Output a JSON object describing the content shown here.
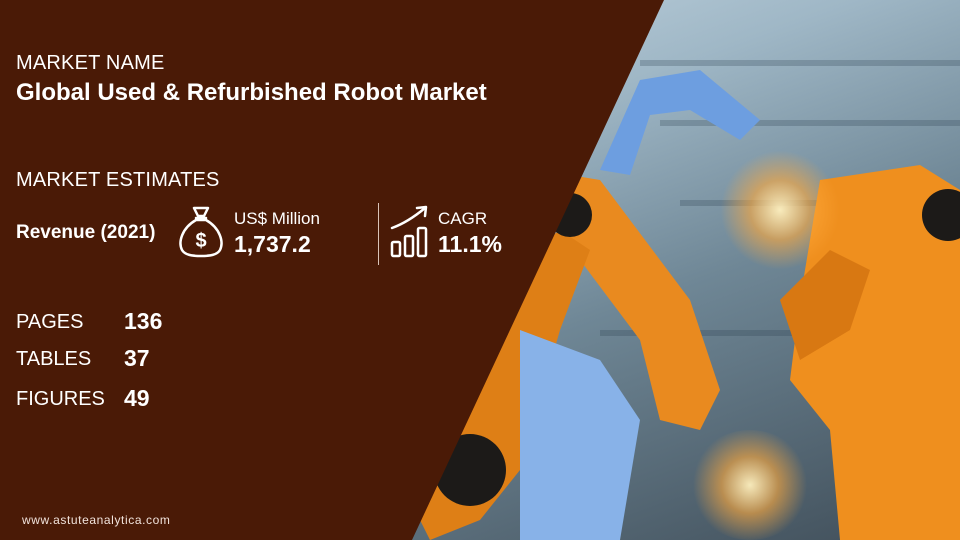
{
  "market": {
    "name_label": "MARKET NAME",
    "name": "Global Used & Refurbished Robot Market"
  },
  "estimates": {
    "label": "MARKET ESTIMATES",
    "revenue_label": "Revenue (2021)",
    "revenue_unit": "US$ Million",
    "revenue_value": "1,737.2",
    "cagr_label": "CAGR",
    "cagr_value": "11.1%"
  },
  "stats": [
    {
      "label": "PAGES",
      "value": "136"
    },
    {
      "label": "TABLES",
      "value": "37"
    },
    {
      "label": "FIGURES",
      "value": "49"
    }
  ],
  "footer": {
    "website": "www.astuteanalytica.com"
  },
  "icons": {
    "revenue": "money-bag-icon",
    "cagr": "growth-chart-icon"
  },
  "colors": {
    "panel": "#4a1a06",
    "robot_orange": "#e98a1f",
    "robot_blue": "#5b8fd6"
  }
}
